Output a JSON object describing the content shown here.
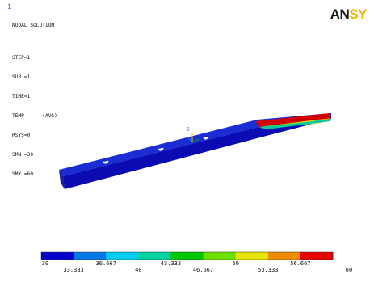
{
  "window": {
    "frame_marker": "1"
  },
  "logo": {
    "part_dark": "AN",
    "part_accent": "SY"
  },
  "info": {
    "lines": [
      "NODAL SOLUTION",
      "",
      "STEP=1",
      "SUB =1",
      "TIME=1",
      "TEMP      (AVG)",
      "RSYS=0",
      "SMN =30",
      "SMX =60"
    ]
  },
  "triad": {
    "x_label": "Y",
    "y_label": "Z",
    "z_label": "X"
  },
  "legend": {
    "colors": [
      "#0000c8",
      "#0078e6",
      "#00cdf0",
      "#00d2a0",
      "#00c800",
      "#6ee000",
      "#e6e600",
      "#f08c00",
      "#e60000"
    ],
    "labels_top": [
      "30",
      "",
      "40",
      "",
      "",
      "50",
      "",
      "",
      "60"
    ],
    "labels_bottom": [
      "33.333",
      "36.667",
      "43.333",
      "46.667",
      "53.333",
      "56.667"
    ],
    "labels_top_row2": [
      "36.667",
      "43.333",
      "56.667"
    ],
    "labels_bottom_row2": [
      "33.333",
      "46.667",
      "53.333"
    ]
  }
}
